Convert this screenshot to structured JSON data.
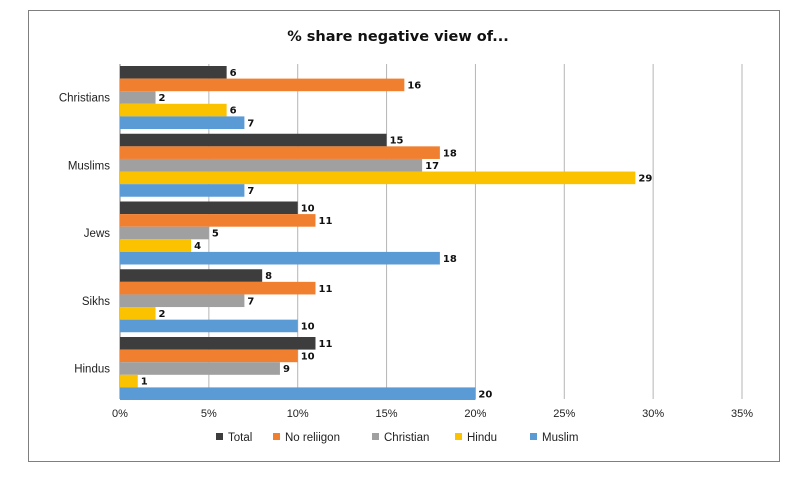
{
  "chart_data": {
    "type": "bar",
    "orientation": "horizontal",
    "title": "% share negative view of...",
    "categories": [
      "Christians",
      "Muslims",
      "Jews",
      "Sikhs",
      "Hindus"
    ],
    "series": [
      {
        "name": "Total",
        "color": "#3d3d3d",
        "values": [
          6,
          15,
          10,
          8,
          11
        ]
      },
      {
        "name": "No reliigon",
        "color": "#f07f30",
        "values": [
          16,
          18,
          11,
          11,
          10
        ]
      },
      {
        "name": "Christian",
        "color": "#a0a0a0",
        "values": [
          2,
          17,
          5,
          7,
          9
        ]
      },
      {
        "name": "Hindu",
        "color": "#fbc200",
        "values": [
          6,
          29,
          4,
          2,
          1
        ]
      },
      {
        "name": "Muslim",
        "color": "#5b9bd5",
        "values": [
          7,
          7,
          18,
          10,
          20
        ]
      }
    ],
    "xlim": [
      0,
      35
    ],
    "xticks": [
      0,
      5,
      10,
      15,
      20,
      25,
      30,
      35
    ],
    "xtick_labels": [
      "0%",
      "5%",
      "10%",
      "15%",
      "20%",
      "25%",
      "30%",
      "35%"
    ],
    "grid": "vertical",
    "legend": "bottom",
    "data_labels": true
  }
}
